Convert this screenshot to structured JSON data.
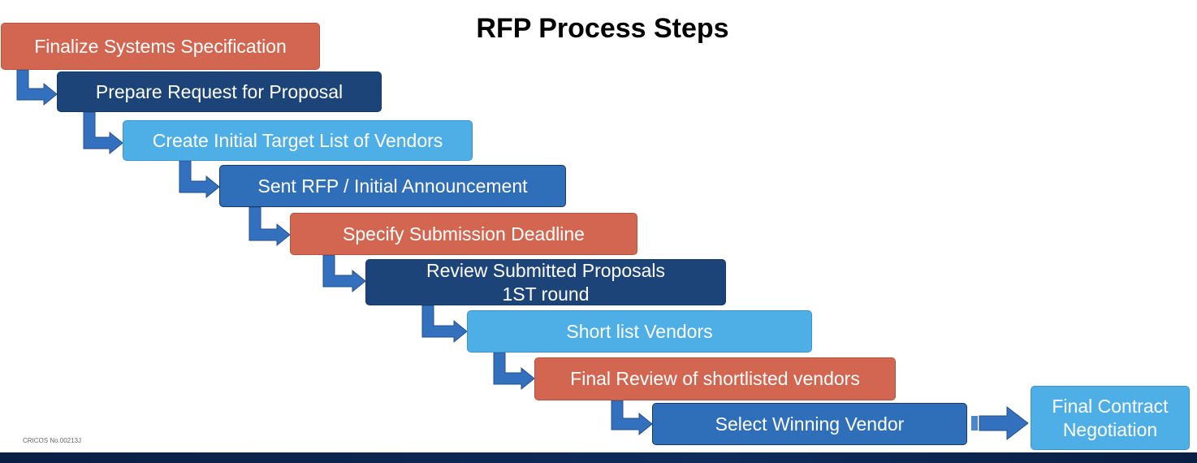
{
  "title": "RFP Process Steps",
  "colors": {
    "salmon": "#d26650",
    "navy": "#1c4478",
    "sky": "#4eaee6",
    "mid": "#2f6eb8",
    "arrow": "#3370bd"
  },
  "steps": [
    {
      "label": "Finalize Systems Specification",
      "color": "salmon"
    },
    {
      "label": "Prepare Request for Proposal",
      "color": "navy"
    },
    {
      "label": "Create Initial Target List of Vendors",
      "color": "sky"
    },
    {
      "label": "Sent RFP / Initial Announcement",
      "color": "mid"
    },
    {
      "label": "Specify Submission Deadline",
      "color": "salmon"
    },
    {
      "label": "Review Submitted Proposals\n1ST round",
      "color": "navy"
    },
    {
      "label": "Short list Vendors",
      "color": "sky"
    },
    {
      "label": "Final Review of shortlisted vendors",
      "color": "salmon"
    },
    {
      "label": "Select Winning Vendor",
      "color": "mid"
    },
    {
      "label": "Final Contract\nNegotiation",
      "color": "sky"
    }
  ],
  "footer": "CRICOS No.00213J"
}
